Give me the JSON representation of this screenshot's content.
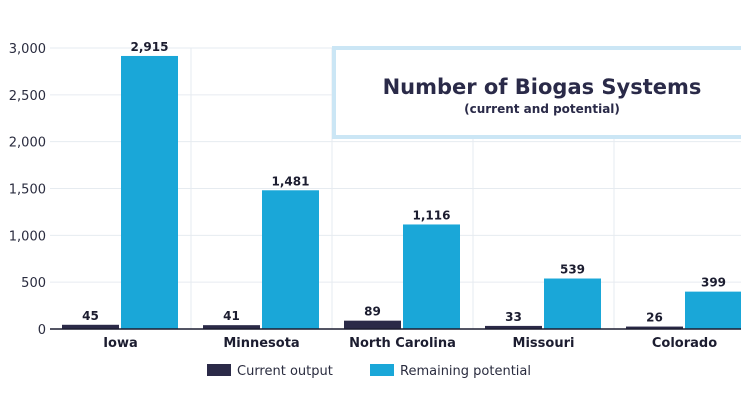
{
  "chart_data": {
    "type": "bar",
    "title": "Number of Biogas Systems",
    "subtitle": "(current and potential)",
    "categories": [
      "Iowa",
      "Minnesota",
      "North Carolina",
      "Missouri",
      "Colorado"
    ],
    "series": [
      {
        "name": "Current output",
        "values": [
          45,
          41,
          89,
          33,
          26
        ],
        "color": "#2b2a48"
      },
      {
        "name": "Remaining potential",
        "values": [
          2915,
          1481,
          1116,
          539,
          399
        ],
        "color": "#1aa7d8"
      }
    ],
    "data_labels": [
      [
        "45",
        "41",
        "89",
        "33",
        "26"
      ],
      [
        "2,915",
        "1,481",
        "1,116",
        "539",
        "399"
      ]
    ],
    "ylim": [
      0,
      3000
    ],
    "yticks": [
      0,
      500,
      1000,
      1500,
      2000,
      2500,
      3000
    ],
    "ytick_labels": [
      "0",
      "500",
      "1,000",
      "1,500",
      "2,000",
      "2,500",
      "3,000"
    ],
    "grid": true,
    "legend_position": "bottom",
    "title_box_border_color": "#cbe6f5"
  }
}
